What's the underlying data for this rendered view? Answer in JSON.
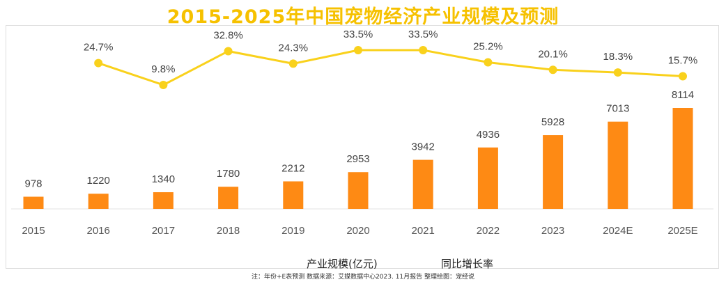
{
  "title": "2015-2025年中国宠物经济产业规模及预测",
  "legend": {
    "bar": "产业规模(亿元)",
    "line": "同比增长率"
  },
  "note": "注：年份+E表预测    数据来源：艾媒数据中心2023. 11月报告    整理绘图：宠经说",
  "colors": {
    "bar": "#fe8a14",
    "line": "#f9d11c",
    "title": "#f6c100"
  },
  "chart_data": {
    "type": "bar+line",
    "categories": [
      "2015",
      "2016",
      "2017",
      "2018",
      "2019",
      "2020",
      "2021",
      "2022",
      "2023",
      "2024E",
      "2025E"
    ],
    "series": [
      {
        "name": "产业规模(亿元)",
        "type": "bar",
        "values": [
          978,
          1220,
          1340,
          1780,
          2212,
          2953,
          3942,
          4936,
          5928,
          7013,
          8114
        ],
        "labels": [
          "978",
          "1220",
          "1340",
          "1780",
          "2212",
          "2953",
          "3942",
          "4936",
          "5928",
          "7013",
          "8114"
        ]
      },
      {
        "name": "同比增长率",
        "type": "line",
        "values": [
          null,
          24.7,
          9.8,
          32.8,
          24.3,
          33.5,
          33.5,
          25.2,
          20.1,
          18.3,
          15.7
        ],
        "labels": [
          "",
          "24.7%",
          "9.8%",
          "32.8%",
          "24.3%",
          "33.5%",
          "33.5%",
          "25.2%",
          "20.1%",
          "18.3%",
          "15.7%"
        ]
      }
    ],
    "grid": false,
    "legend_position": "bottom-center"
  }
}
